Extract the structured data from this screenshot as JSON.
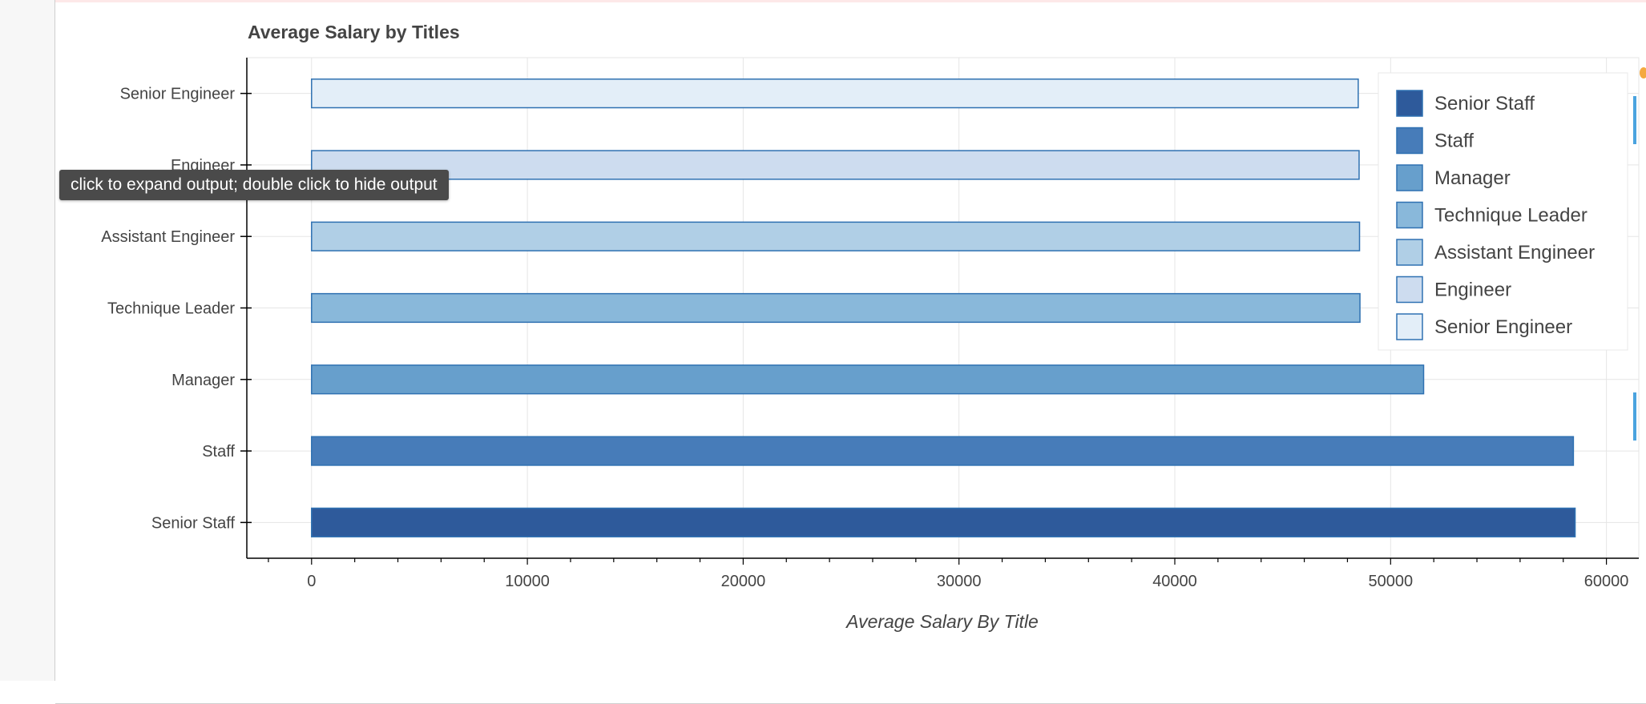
{
  "notebook": {
    "tooltip": "click to expand output; double click to hide output"
  },
  "chart_data": {
    "type": "bar",
    "orientation": "horizontal",
    "title": "Average Salary by Titles",
    "xlabel": "Average Salary By Title",
    "ylabel": "",
    "categories": [
      "Senior Engineer",
      "Engineer",
      "Assistant Engineer",
      "Technique Leader",
      "Manager",
      "Staff",
      "Senior Staff"
    ],
    "values": [
      48500,
      48540,
      48560,
      48580,
      51530,
      58470,
      58550
    ],
    "colors": [
      "#e3eef8",
      "#cddcef",
      "#b0cfe6",
      "#89b8da",
      "#679fcc",
      "#477cb9",
      "#2e5a9b"
    ],
    "bar_border_color": "#2f71b2",
    "xlim": [
      -3000,
      61500
    ],
    "xticks": [
      0,
      10000,
      20000,
      30000,
      40000,
      50000,
      60000
    ],
    "xtick_labels": [
      "0",
      "10000",
      "20000",
      "30000",
      "40000",
      "50000",
      "60000"
    ],
    "grid": true,
    "legend": {
      "placement": "top-right",
      "entries": [
        "Senior Staff",
        "Staff",
        "Manager",
        "Technique Leader",
        "Assistant Engineer",
        "Engineer",
        "Senior Engineer"
      ]
    }
  }
}
